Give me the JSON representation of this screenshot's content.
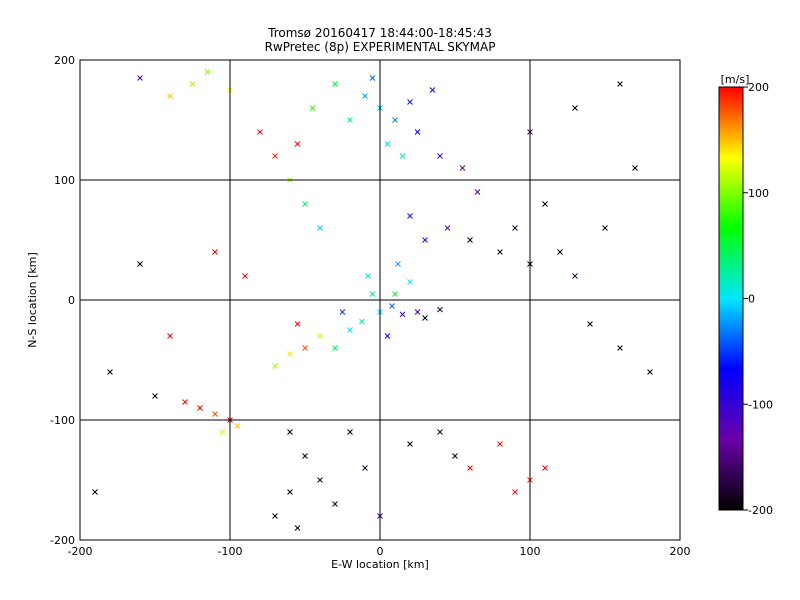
{
  "chart_data": {
    "type": "scatter",
    "title": "Tromsø 20160417 18:44:00-18:45:43",
    "subtitle": "RwPretec (8p) EXPERIMENTAL SKYMAP",
    "xlabel": "E-W location [km]",
    "ylabel": "N-S location [km]",
    "xlim": [
      -200,
      200
    ],
    "ylim": [
      -200,
      200
    ],
    "xticks": [
      "-200",
      "-100",
      "0",
      "100",
      "200"
    ],
    "yticks": [
      "-200",
      "-100",
      "0",
      "100",
      "200"
    ],
    "xtick_values": [
      -200,
      -100,
      0,
      100,
      200
    ],
    "ytick_values": [
      -200,
      -100,
      0,
      100,
      200
    ],
    "grid": true,
    "colorbar": {
      "label": "[m/s]",
      "range": [
        -200,
        200
      ],
      "ticks": [
        "200",
        "100",
        "0",
        "-100",
        "-200"
      ],
      "tick_values": [
        200,
        100,
        0,
        -100,
        -200
      ],
      "colormap": "black-purple-blue-cyan-green-yellow-red",
      "stops": [
        "#000000",
        "#6a00a8",
        "#0000ff",
        "#00e6ff",
        "#00ff00",
        "#ffff00",
        "#ff0000"
      ]
    },
    "series": [
      {
        "values": [
          {
            "x": 0,
            "y": -10,
            "v": 0
          },
          {
            "x": 8,
            "y": -5,
            "v": -40
          },
          {
            "x": -12,
            "y": -18,
            "v": 20
          },
          {
            "x": 15,
            "y": -12,
            "v": -100
          },
          {
            "x": -5,
            "y": 5,
            "v": 30
          },
          {
            "x": 25,
            "y": -10,
            "v": -150
          },
          {
            "x": -20,
            "y": -25,
            "v": 0
          },
          {
            "x": 10,
            "y": 5,
            "v": 60
          },
          {
            "x": 30,
            "y": -15,
            "v": -200
          },
          {
            "x": -25,
            "y": -10,
            "v": -50
          },
          {
            "x": 5,
            "y": -30,
            "v": -80
          },
          {
            "x": 40,
            "y": -8,
            "v": -180
          },
          {
            "x": -30,
            "y": -40,
            "v": 40
          },
          {
            "x": 20,
            "y": 15,
            "v": 0
          },
          {
            "x": -8,
            "y": 20,
            "v": 10
          },
          {
            "x": 12,
            "y": 30,
            "v": -20
          },
          {
            "x": -40,
            "y": -30,
            "v": 120
          },
          {
            "x": -50,
            "y": -40,
            "v": 180
          },
          {
            "x": -60,
            "y": -45,
            "v": 140
          },
          {
            "x": -55,
            "y": -20,
            "v": 200
          },
          {
            "x": -70,
            "y": -55,
            "v": 110
          },
          {
            "x": 0,
            "y": 160,
            "v": -10
          },
          {
            "x": 10,
            "y": 150,
            "v": -30
          },
          {
            "x": -10,
            "y": 170,
            "v": -20
          },
          {
            "x": 20,
            "y": 165,
            "v": -60
          },
          {
            "x": 5,
            "y": 130,
            "v": -5
          },
          {
            "x": -20,
            "y": 150,
            "v": 20
          },
          {
            "x": 25,
            "y": 140,
            "v": -70
          },
          {
            "x": -5,
            "y": 185,
            "v": -40
          },
          {
            "x": 35,
            "y": 175,
            "v": -90
          },
          {
            "x": 15,
            "y": 120,
            "v": 10
          },
          {
            "x": -30,
            "y": 180,
            "v": 60
          },
          {
            "x": -45,
            "y": 160,
            "v": 80
          },
          {
            "x": 40,
            "y": 120,
            "v": -110
          },
          {
            "x": 55,
            "y": 110,
            "v": -130
          },
          {
            "x": 65,
            "y": 90,
            "v": -150
          },
          {
            "x": 45,
            "y": 60,
            "v": -120
          },
          {
            "x": 30,
            "y": 50,
            "v": -100
          },
          {
            "x": 20,
            "y": 70,
            "v": -60
          },
          {
            "x": 60,
            "y": 50,
            "v": -200
          },
          {
            "x": 80,
            "y": 40,
            "v": -190
          },
          {
            "x": 100,
            "y": 30,
            "v": -200
          },
          {
            "x": 90,
            "y": 60,
            "v": -180
          },
          {
            "x": 120,
            "y": 40,
            "v": -200
          },
          {
            "x": 130,
            "y": 20,
            "v": -170
          },
          {
            "x": 110,
            "y": 80,
            "v": -200
          },
          {
            "x": 150,
            "y": 60,
            "v": -190
          },
          {
            "x": 140,
            "y": -20,
            "v": -200
          },
          {
            "x": 160,
            "y": -40,
            "v": -200
          },
          {
            "x": 180,
            "y": -60,
            "v": -200
          },
          {
            "x": 170,
            "y": 110,
            "v": -200
          },
          {
            "x": 130,
            "y": 160,
            "v": -200
          },
          {
            "x": 100,
            "y": 140,
            "v": -160
          },
          {
            "x": 160,
            "y": 180,
            "v": -200
          },
          {
            "x": -60,
            "y": -110,
            "v": -200
          },
          {
            "x": -50,
            "y": -130,
            "v": -200
          },
          {
            "x": -40,
            "y": -150,
            "v": -200
          },
          {
            "x": -60,
            "y": -160,
            "v": -200
          },
          {
            "x": -70,
            "y": -180,
            "v": -200
          },
          {
            "x": -55,
            "y": -190,
            "v": -200
          },
          {
            "x": -30,
            "y": -170,
            "v": -190
          },
          {
            "x": -20,
            "y": -110,
            "v": -200
          },
          {
            "x": -10,
            "y": -140,
            "v": -180
          },
          {
            "x": 0,
            "y": -180,
            "v": -100
          },
          {
            "x": 20,
            "y": -120,
            "v": -200
          },
          {
            "x": 40,
            "y": -110,
            "v": -190
          },
          {
            "x": 50,
            "y": -130,
            "v": -200
          },
          {
            "x": 60,
            "y": -140,
            "v": 200
          },
          {
            "x": 80,
            "y": -120,
            "v": 200
          },
          {
            "x": 90,
            "y": -160,
            "v": 200
          },
          {
            "x": 100,
            "y": -150,
            "v": 190
          },
          {
            "x": 110,
            "y": -140,
            "v": 200
          },
          {
            "x": -100,
            "y": -100,
            "v": 200
          },
          {
            "x": -110,
            "y": -95,
            "v": 180
          },
          {
            "x": -95,
            "y": -105,
            "v": 150
          },
          {
            "x": -120,
            "y": -90,
            "v": 200
          },
          {
            "x": -105,
            "y": -110,
            "v": 120
          },
          {
            "x": -130,
            "y": -85,
            "v": 200
          },
          {
            "x": -140,
            "y": 170,
            "v": 150
          },
          {
            "x": -125,
            "y": 180,
            "v": 110
          },
          {
            "x": -100,
            "y": 175,
            "v": 130
          },
          {
            "x": -115,
            "y": 190,
            "v": 100
          },
          {
            "x": -160,
            "y": 185,
            "v": -110
          },
          {
            "x": -190,
            "y": -160,
            "v": -200
          },
          {
            "x": -80,
            "y": 140,
            "v": 200
          },
          {
            "x": -70,
            "y": 120,
            "v": 190
          },
          {
            "x": -60,
            "y": 100,
            "v": 110
          },
          {
            "x": -50,
            "y": 80,
            "v": 40
          },
          {
            "x": -40,
            "y": 60,
            "v": -10
          },
          {
            "x": -55,
            "y": 130,
            "v": 200
          },
          {
            "x": -140,
            "y": -30,
            "v": 200
          },
          {
            "x": -180,
            "y": -60,
            "v": -200
          },
          {
            "x": -150,
            "y": -80,
            "v": -200
          },
          {
            "x": -160,
            "y": 30,
            "v": -200
          },
          {
            "x": -110,
            "y": 40,
            "v": 200
          },
          {
            "x": -90,
            "y": 20,
            "v": 200
          }
        ]
      }
    ]
  }
}
